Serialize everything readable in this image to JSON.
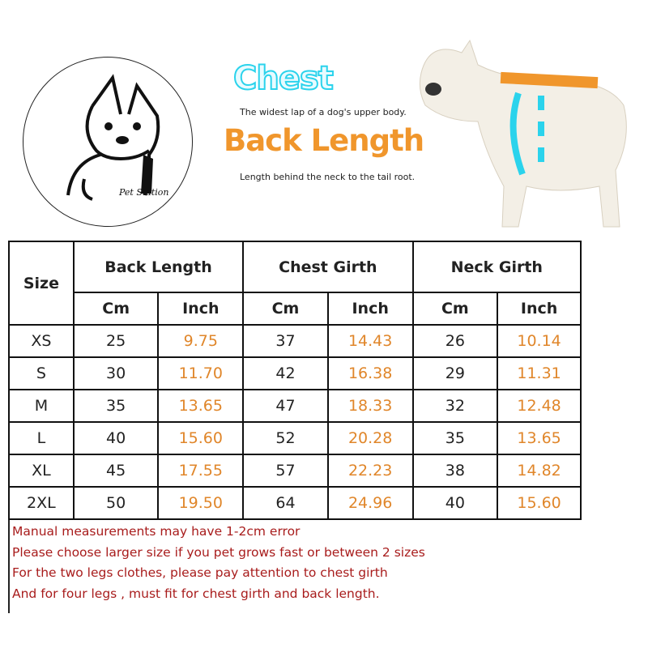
{
  "logo": {
    "text": "Pet Station"
  },
  "legend": {
    "chest_title": "Chest",
    "chest_desc": "The widest lap of a dog's upper body.",
    "back_title": "Back Length",
    "back_desc": "Length behind the neck to the tail root.",
    "colors": {
      "chest": "#2bd3ec",
      "back": "#f0962c"
    }
  },
  "table": {
    "size_header": "Size",
    "groups": [
      "Back Length",
      "Chest Girth",
      "Neck Girth"
    ],
    "units": [
      "Cm",
      "Inch",
      "Cm",
      "Inch",
      "Cm",
      "Inch"
    ],
    "rows": [
      [
        "XS",
        "25",
        "9.75",
        "37",
        "14.43",
        "26",
        "10.14"
      ],
      [
        "S",
        "30",
        "11.70",
        "42",
        "16.38",
        "29",
        "11.31"
      ],
      [
        "M",
        "35",
        "13.65",
        "47",
        "18.33",
        "32",
        "12.48"
      ],
      [
        "L",
        "40",
        "15.60",
        "52",
        "20.28",
        "35",
        "13.65"
      ],
      [
        "XL",
        "45",
        "17.55",
        "57",
        "22.23",
        "38",
        "14.82"
      ],
      [
        "2XL",
        "50",
        "19.50",
        "64",
        "24.96",
        "40",
        "15.60"
      ]
    ]
  },
  "notes": [
    "Manual measurements may have 1-2cm error",
    "Please choose larger size if you pet grows fast or between 2 sizes",
    "For the two legs clothes,  please pay attention to chest girth",
    "And for four legs ,  must fit for chest girth and back length."
  ]
}
